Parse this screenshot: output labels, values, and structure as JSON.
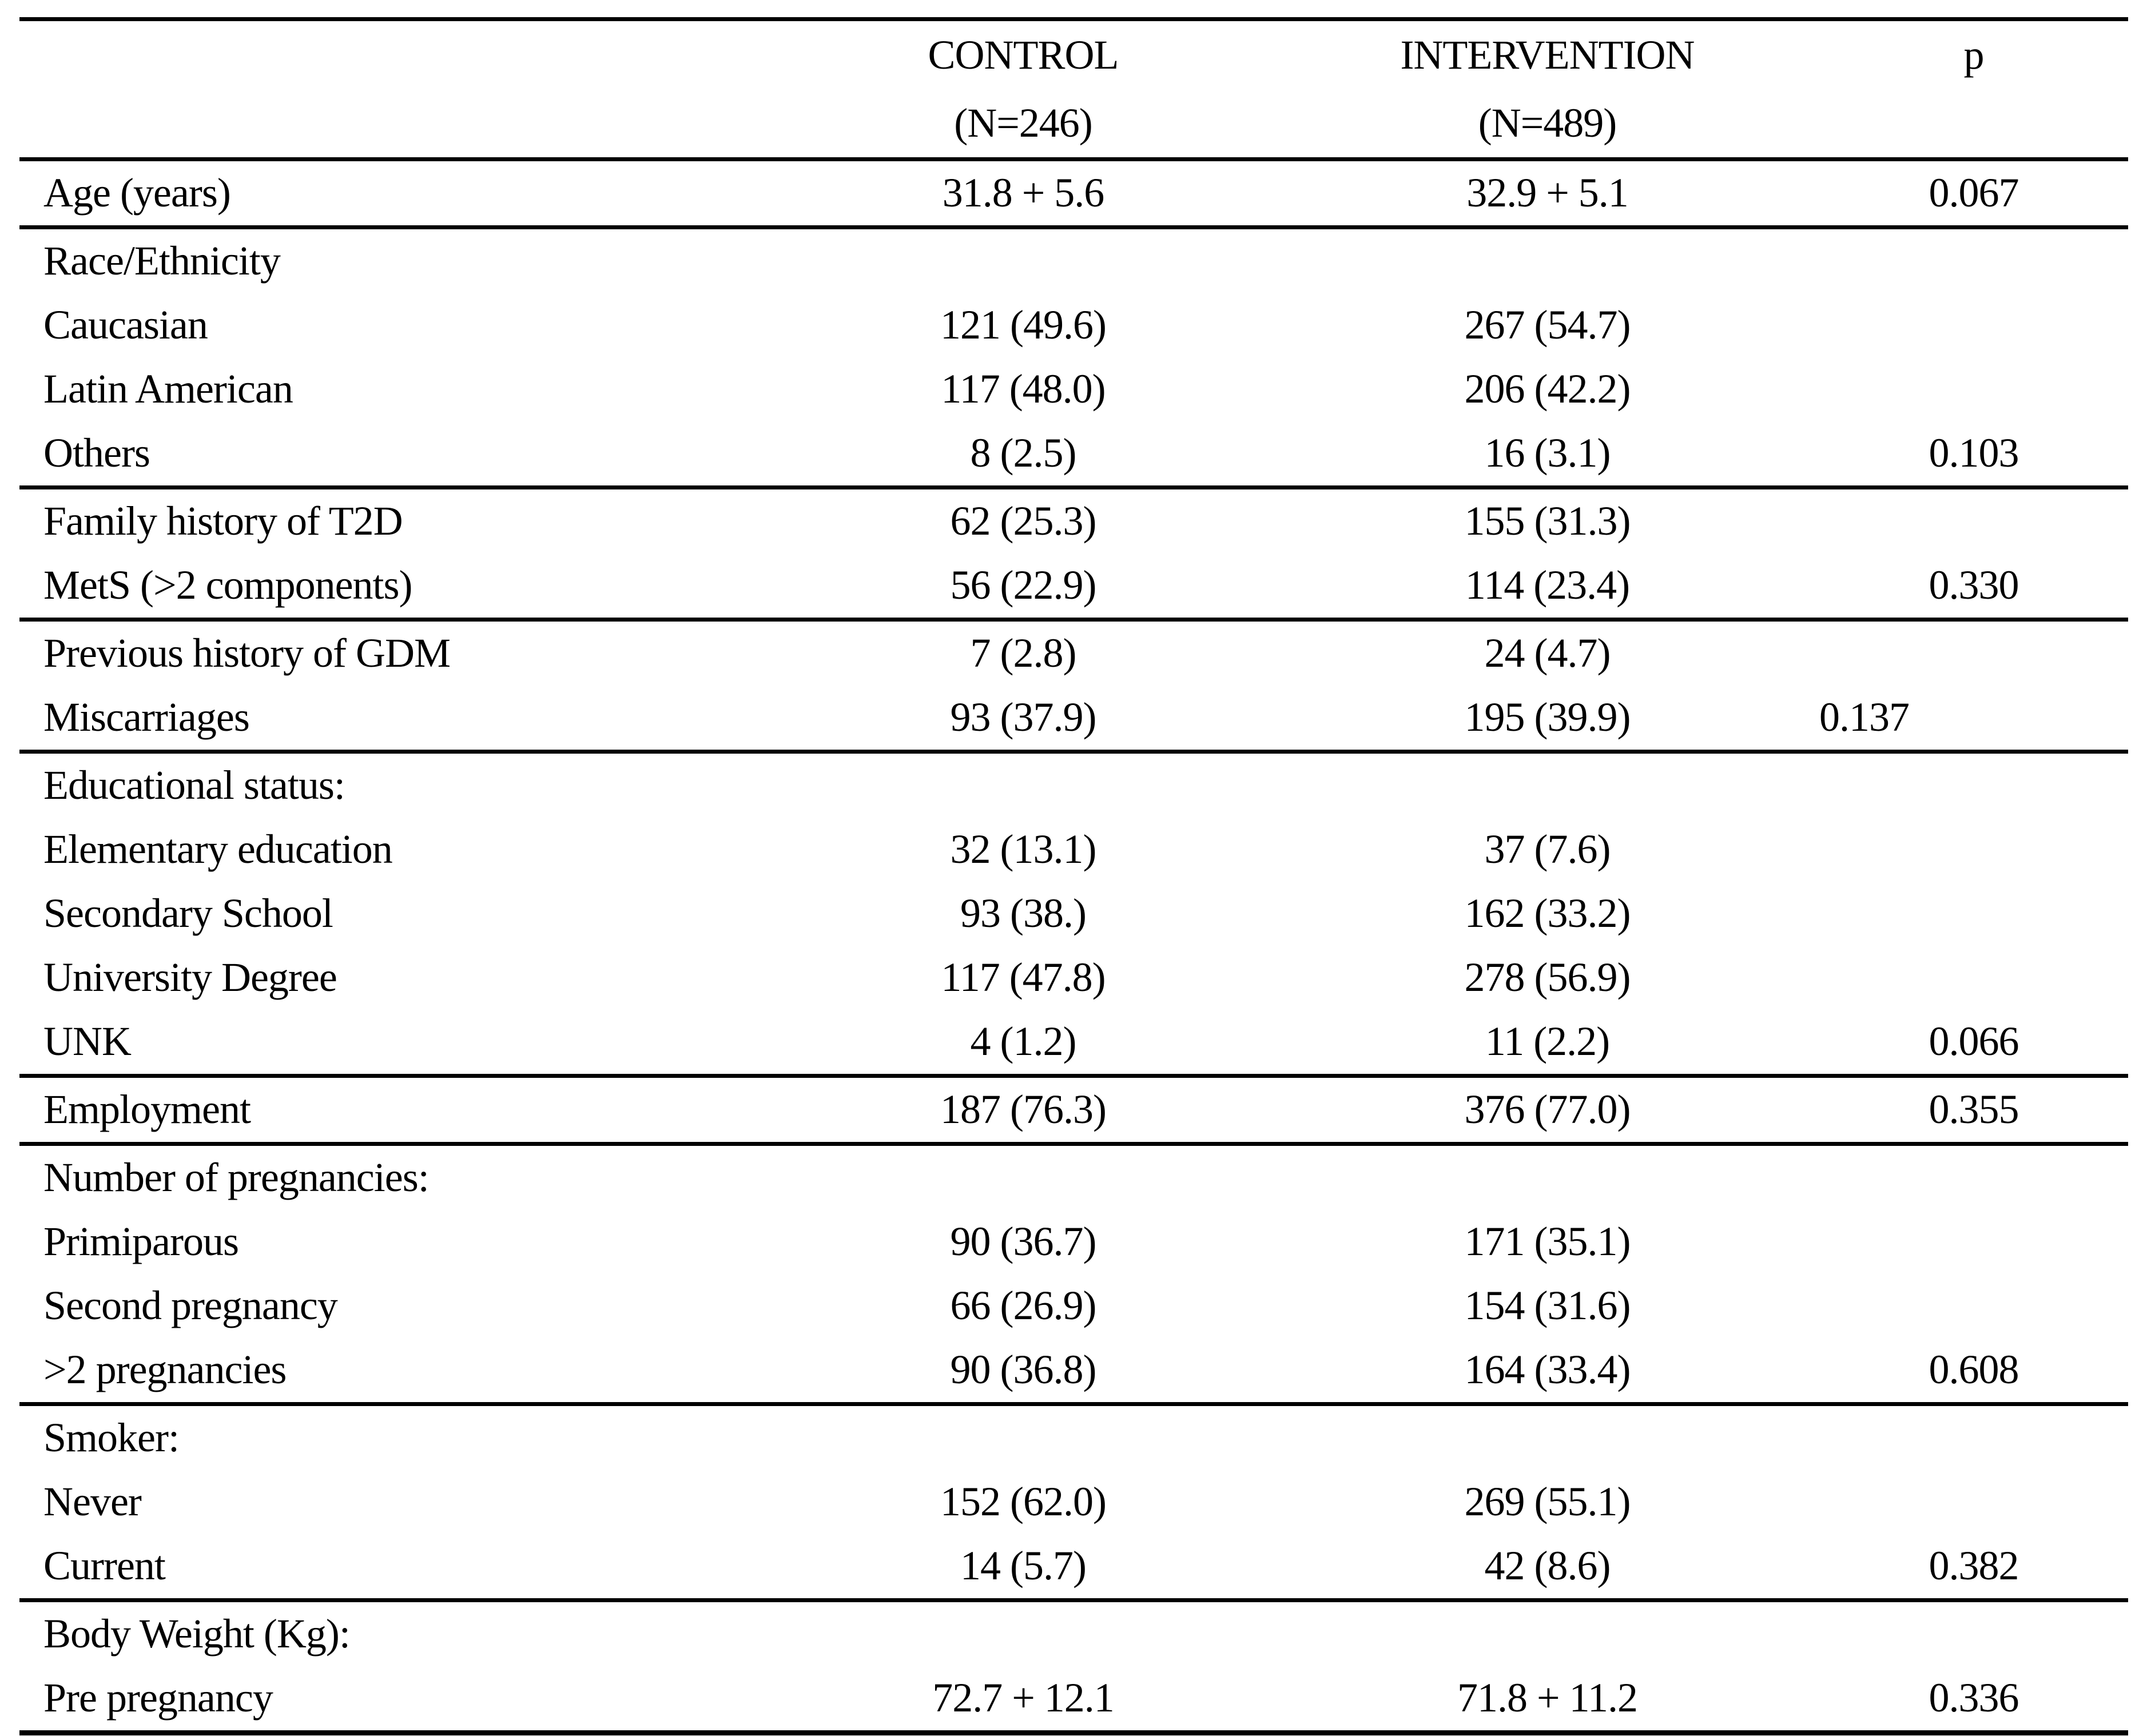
{
  "table": {
    "title_semantic": "Baseline characteristics comparison table",
    "header": {
      "label": "",
      "control_line1": "CONTROL",
      "control_line2": "(N=246)",
      "intervention_line1": "INTERVENTION",
      "intervention_line2": "(N=489)",
      "p": "p"
    },
    "sections": [
      {
        "rows": [
          {
            "label": "Age (years)",
            "control": "31.8 + 5.6",
            "intervention": "32.9 + 5.1",
            "p": "0.067"
          }
        ]
      },
      {
        "rows": [
          {
            "label": "Race/Ethnicity",
            "control": "",
            "intervention": "",
            "p": ""
          },
          {
            "label": "Caucasian",
            "control": "121 (49.6)",
            "intervention": "267 (54.7)",
            "p": ""
          },
          {
            "label": "Latin American",
            "control": "117 (48.0)",
            "intervention": "206 (42.2)",
            "p": ""
          },
          {
            "label": "Others",
            "control": "8 (2.5)",
            "intervention": "16 (3.1)",
            "p": "0.103"
          }
        ]
      },
      {
        "rows": [
          {
            "label": "Family history of T2D",
            "control": "62 (25.3)",
            "intervention": "155 (31.3)",
            "p": ""
          },
          {
            "label": "MetS (>2 components)",
            "control": "56 (22.9)",
            "intervention": "114 (23.4)",
            "p": "0.330"
          }
        ]
      },
      {
        "rows": [
          {
            "label": "Previous history of GDM",
            "control": "7 (2.8)",
            "intervention": "24 (4.7)",
            "p": ""
          },
          {
            "label": "Miscarriages",
            "control": "93 (37.9)",
            "intervention": "195 (39.9)",
            "p": "0.137",
            "p_shift_left": true
          }
        ]
      },
      {
        "rows": [
          {
            "label": "Educational status:",
            "control": "",
            "intervention": "",
            "p": ""
          },
          {
            "label": "Elementary education",
            "control": "32 (13.1)",
            "intervention": "37 (7.6)",
            "p": ""
          },
          {
            "label": "Secondary School",
            "control": "93 (38.)",
            "intervention": "162 (33.2)",
            "p": ""
          },
          {
            "label": "University Degree",
            "control": "117 (47.8)",
            "intervention": "278 (56.9)",
            "p": ""
          },
          {
            "label": "UNK",
            "control": "4 (1.2)",
            "intervention": "11 (2.2)",
            "p": "0.066"
          }
        ]
      },
      {
        "rows": [
          {
            "label": "Employment",
            "control": "187 (76.3)",
            "intervention": "376 (77.0)",
            "p": "0.355"
          }
        ]
      },
      {
        "rows": [
          {
            "label": "Number of pregnancies:",
            "control": "",
            "intervention": "",
            "p": ""
          },
          {
            "label": "Primiparous",
            "control": "90 (36.7)",
            "intervention": "171 (35.1)",
            "p": ""
          },
          {
            "label": "Second pregnancy",
            "control": "66 (26.9)",
            "intervention": "154 (31.6)",
            "p": ""
          },
          {
            "label": ">2 pregnancies",
            "control": "90 (36.8)",
            "intervention": "164 (33.4)",
            "p": "0.608"
          }
        ]
      },
      {
        "rows": [
          {
            "label": "Smoker:",
            "control": "",
            "intervention": "",
            "p": ""
          },
          {
            "label": "Never",
            "control": "152 (62.0)",
            "intervention": "269 (55.1)",
            "p": ""
          },
          {
            "label": "Current",
            "control": "14 (5.7)",
            "intervention": "42 (8.6)",
            "p": "0.382"
          }
        ]
      },
      {
        "rows": [
          {
            "label": "Body Weight (Kg):",
            "control": "",
            "intervention": "",
            "p": ""
          },
          {
            "label": "Pre pregnancy",
            "control": "72.7 + 12.1",
            "intervention": "71.8 + 11.2",
            "p": "0.336"
          }
        ]
      }
    ]
  }
}
